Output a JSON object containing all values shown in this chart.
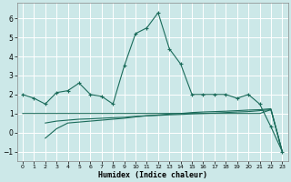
{
  "xlabel": "Humidex (Indice chaleur)",
  "xlim": [
    -0.5,
    23.5
  ],
  "ylim": [
    -1.5,
    6.8
  ],
  "yticks": [
    -1,
    0,
    1,
    2,
    3,
    4,
    5,
    6
  ],
  "xticks": [
    0,
    1,
    2,
    3,
    4,
    5,
    6,
    7,
    8,
    9,
    10,
    11,
    12,
    13,
    14,
    15,
    16,
    17,
    18,
    19,
    20,
    21,
    22,
    23
  ],
  "bg_color": "#cce8e8",
  "grid_color": "#ffffff",
  "line_color": "#1a6b5a",
  "line1_x": [
    0,
    1,
    2,
    3,
    4,
    5,
    6,
    7,
    8,
    9,
    10,
    11,
    12,
    13,
    14,
    15,
    16,
    17,
    18,
    19,
    20,
    21,
    22,
    23
  ],
  "line1_y": [
    2.0,
    1.8,
    1.5,
    2.1,
    2.2,
    2.6,
    2.0,
    1.9,
    1.5,
    3.5,
    5.2,
    5.5,
    6.3,
    4.4,
    3.6,
    2.0,
    2.0,
    2.0,
    2.0,
    1.8,
    2.0,
    1.5,
    0.3,
    -1.0
  ],
  "line2_x": [
    2,
    3,
    4,
    5,
    6,
    7,
    8,
    9,
    10,
    11,
    12,
    13,
    14,
    15,
    16,
    17,
    18,
    19,
    20,
    21,
    22,
    23
  ],
  "line2_y": [
    -0.3,
    0.2,
    0.5,
    0.55,
    0.6,
    0.65,
    0.7,
    0.75,
    0.82,
    0.88,
    0.92,
    0.97,
    1.0,
    1.05,
    1.08,
    1.1,
    1.12,
    1.15,
    1.18,
    1.2,
    1.25,
    -1.0
  ],
  "line3_x": [
    2,
    3,
    4,
    5,
    6,
    7,
    8,
    9,
    10,
    11,
    12,
    13,
    14,
    15,
    16,
    17,
    18,
    19,
    20,
    21,
    22,
    23
  ],
  "line3_y": [
    0.5,
    0.6,
    0.65,
    0.7,
    0.72,
    0.75,
    0.78,
    0.8,
    0.85,
    0.88,
    0.9,
    0.93,
    0.95,
    0.98,
    1.0,
    1.02,
    1.05,
    1.08,
    1.1,
    1.15,
    1.2,
    -1.0
  ],
  "line4_x": [
    0,
    1,
    2,
    3,
    4,
    5,
    6,
    7,
    8,
    9,
    10,
    11,
    12,
    13,
    14,
    15,
    16,
    17,
    18,
    19,
    20,
    21,
    22,
    23
  ],
  "line4_y": [
    1.0,
    1.0,
    1.0,
    1.0,
    1.0,
    1.0,
    1.0,
    1.0,
    1.0,
    1.0,
    1.0,
    1.0,
    1.0,
    1.0,
    1.0,
    1.0,
    1.0,
    1.0,
    1.0,
    1.0,
    1.0,
    1.0,
    1.2,
    -1.0
  ]
}
